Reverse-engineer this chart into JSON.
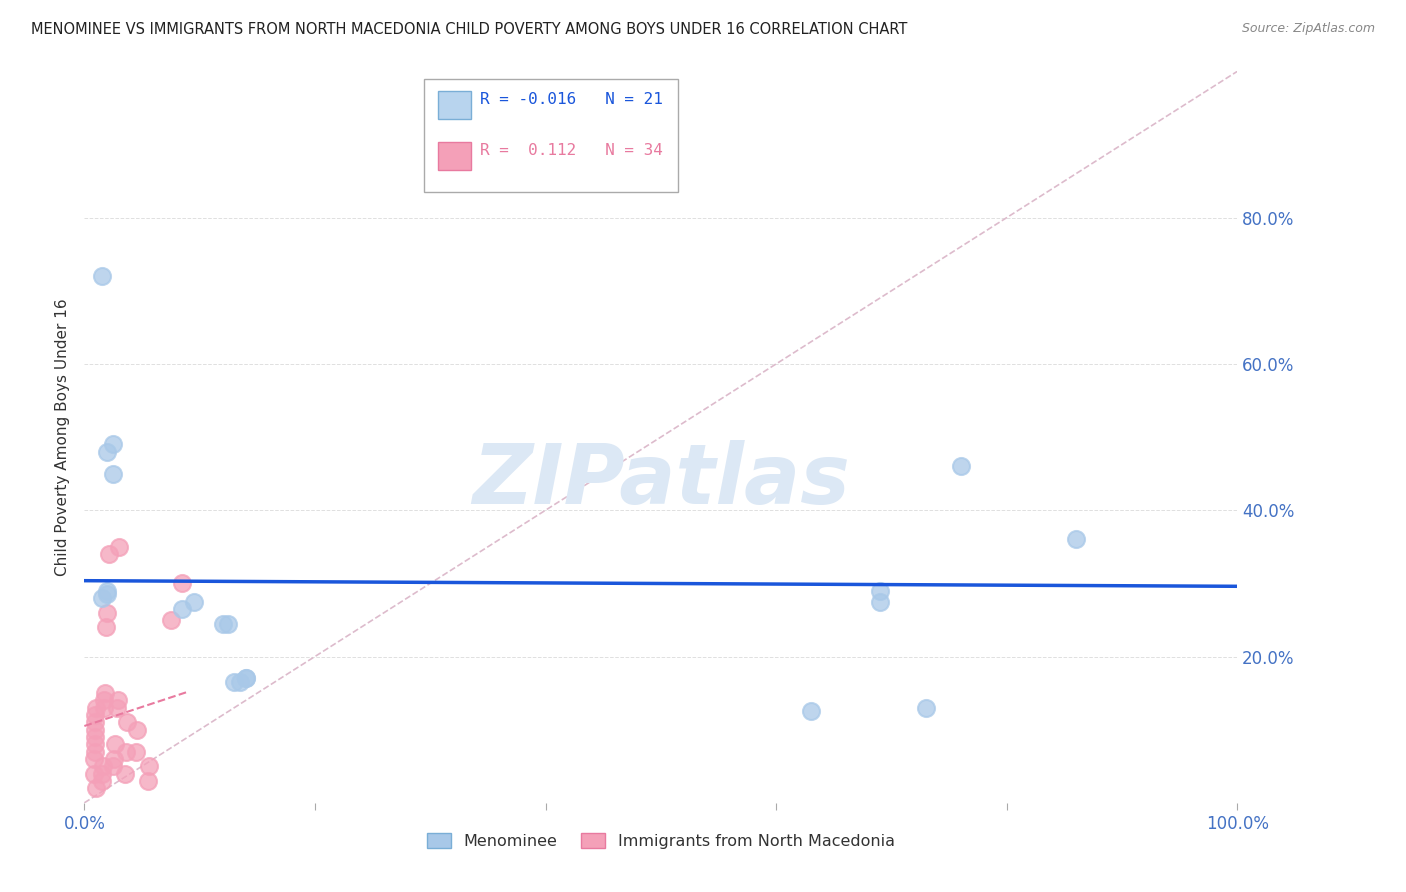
{
  "title": "MENOMINEE VS IMMIGRANTS FROM NORTH MACEDONIA CHILD POVERTY AMONG BOYS UNDER 16 CORRELATION CHART",
  "source": "Source: ZipAtlas.com",
  "ylabel": "Child Poverty Among Boys Under 16",
  "xlim": [
    0,
    1.0
  ],
  "ylim": [
    0,
    1.0
  ],
  "group1_name": "Menominee",
  "group1_color": "#a8c8e8",
  "group1_R": -0.016,
  "group1_N": 21,
  "group1_line_color": "#1a56db",
  "group2_name": "Immigrants from North Macedonia",
  "group2_color": "#f4a0b8",
  "group2_R": 0.112,
  "group2_N": 34,
  "group2_line_color": "#e87a9f",
  "diagonal_color": "#ddbbcc",
  "watermark": "ZIPatlas",
  "watermark_color": "#dce8f5",
  "menominee_x": [
    0.015,
    0.02,
    0.025,
    0.025,
    0.085,
    0.095,
    0.12,
    0.125,
    0.13,
    0.135,
    0.14,
    0.14,
    0.015,
    0.02,
    0.02,
    0.76,
    0.69,
    0.86,
    0.73,
    0.69,
    0.63
  ],
  "menominee_y": [
    0.72,
    0.48,
    0.49,
    0.45,
    0.265,
    0.275,
    0.245,
    0.245,
    0.165,
    0.165,
    0.17,
    0.17,
    0.28,
    0.285,
    0.29,
    0.46,
    0.29,
    0.36,
    0.13,
    0.275,
    0.125
  ],
  "macedonia_x": [
    0.008,
    0.008,
    0.009,
    0.009,
    0.009,
    0.009,
    0.009,
    0.009,
    0.01,
    0.01,
    0.015,
    0.015,
    0.016,
    0.017,
    0.017,
    0.018,
    0.019,
    0.02,
    0.021,
    0.025,
    0.026,
    0.027,
    0.028,
    0.029,
    0.03,
    0.035,
    0.036,
    0.037,
    0.045,
    0.046,
    0.055,
    0.056,
    0.075,
    0.085
  ],
  "macedonia_y": [
    0.04,
    0.06,
    0.07,
    0.08,
    0.09,
    0.1,
    0.11,
    0.12,
    0.13,
    0.02,
    0.03,
    0.04,
    0.05,
    0.13,
    0.14,
    0.15,
    0.24,
    0.26,
    0.34,
    0.05,
    0.06,
    0.08,
    0.13,
    0.14,
    0.35,
    0.04,
    0.07,
    0.11,
    0.07,
    0.1,
    0.03,
    0.05,
    0.25,
    0.3
  ],
  "background_color": "#ffffff",
  "grid_color": "#e0e0e0"
}
